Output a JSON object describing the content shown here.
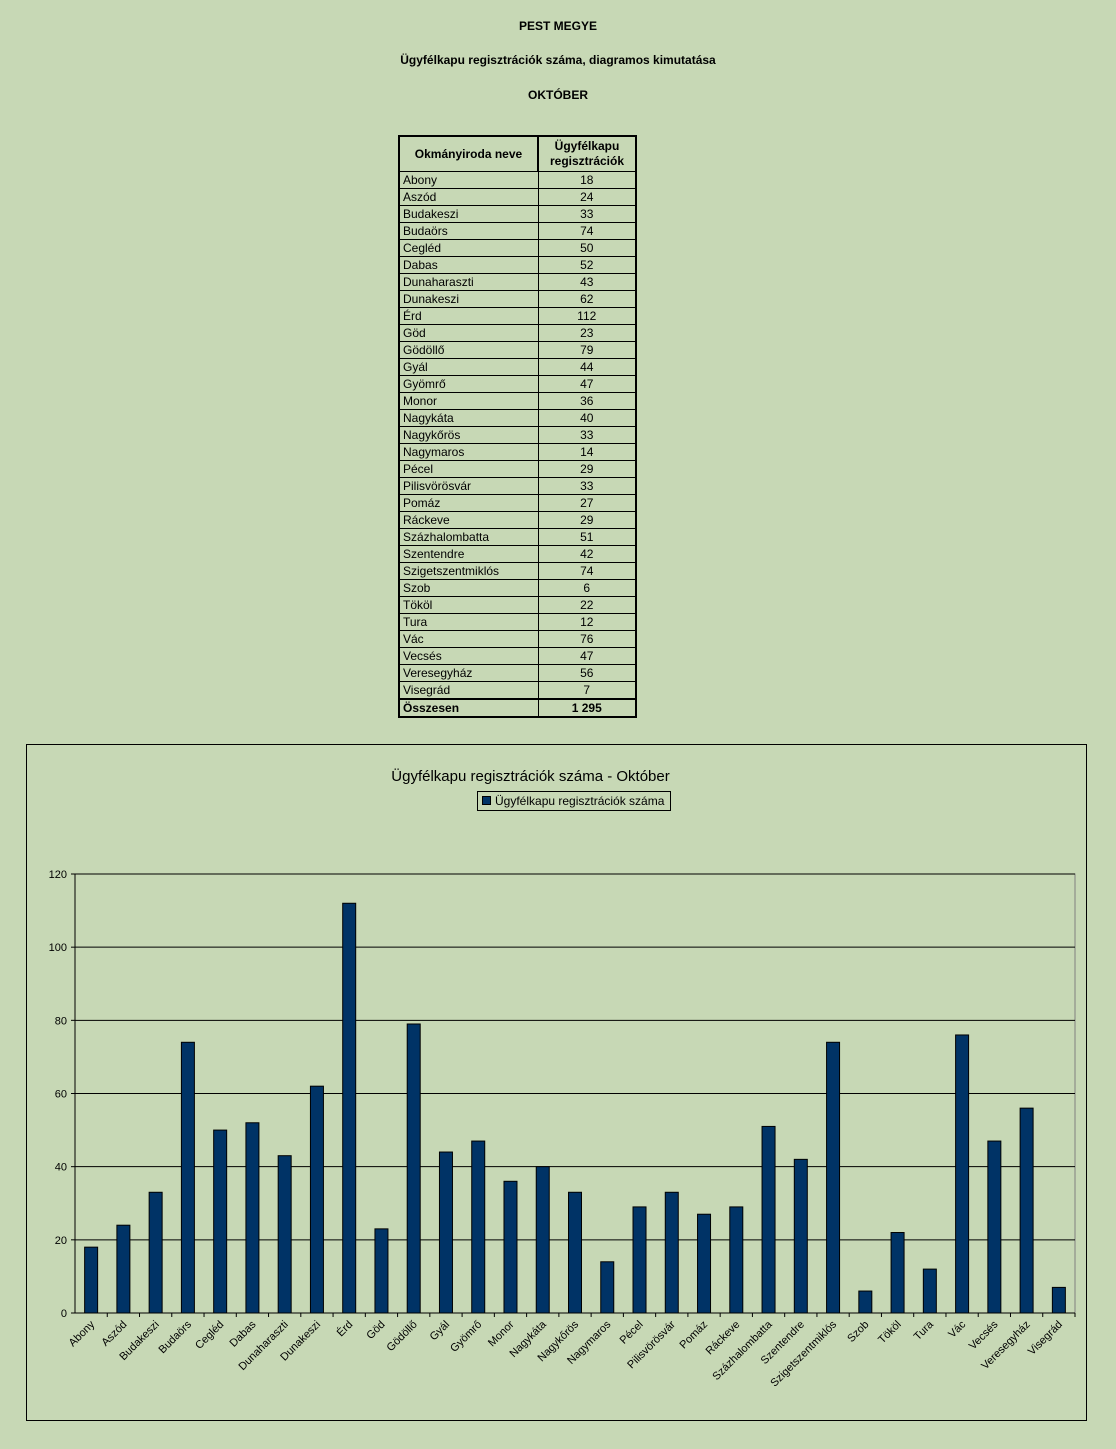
{
  "header": {
    "county": "PEST MEGYE",
    "subtitle": "Ügyfélkapu regisztrációk száma, diagramos kimutatása",
    "month": "OKTÓBER"
  },
  "table": {
    "col1_header": "Okmányiroda neve",
    "col2_header": "Ügyfélkapu regisztrációk",
    "rows": [
      {
        "name": "Abony",
        "value": "18"
      },
      {
        "name": "Aszód",
        "value": "24"
      },
      {
        "name": "Budakeszi",
        "value": "33"
      },
      {
        "name": "Budaörs",
        "value": "74"
      },
      {
        "name": "Cegléd",
        "value": "50"
      },
      {
        "name": "Dabas",
        "value": "52"
      },
      {
        "name": "Dunaharaszti",
        "value": "43"
      },
      {
        "name": "Dunakeszi",
        "value": "62"
      },
      {
        "name": "Érd",
        "value": "112"
      },
      {
        "name": "Göd",
        "value": "23"
      },
      {
        "name": "Gödöllő",
        "value": "79"
      },
      {
        "name": "Gyál",
        "value": "44"
      },
      {
        "name": "Gyömrő",
        "value": "47"
      },
      {
        "name": "Monor",
        "value": "36"
      },
      {
        "name": "Nagykáta",
        "value": "40"
      },
      {
        "name": "Nagykőrös",
        "value": "33"
      },
      {
        "name": "Nagymaros",
        "value": "14"
      },
      {
        "name": "Pécel",
        "value": "29"
      },
      {
        "name": "Pilisvörösvár",
        "value": "33"
      },
      {
        "name": "Pomáz",
        "value": "27"
      },
      {
        "name": "Ráckeve",
        "value": "29"
      },
      {
        "name": "Százhalombatta",
        "value": "51"
      },
      {
        "name": "Szentendre",
        "value": "42"
      },
      {
        "name": "Szigetszentmiklós",
        "value": "74"
      },
      {
        "name": "Szob",
        "value": "6"
      },
      {
        "name": "Tököl",
        "value": "22"
      },
      {
        "name": "Tura",
        "value": "12"
      },
      {
        "name": "Vác",
        "value": "76"
      },
      {
        "name": "Vecsés",
        "value": "47"
      },
      {
        "name": "Veresegyház",
        "value": "56"
      },
      {
        "name": "Visegrád",
        "value": "7"
      }
    ],
    "total_label": "Összesen",
    "total_value": "1 295"
  },
  "colors": {
    "background": "#c7d8b5",
    "bar": "#003366"
  },
  "chart_data": {
    "type": "bar",
    "title": "Ügyfélkapu regisztrációk száma - Október",
    "legend_position": "top",
    "grid": true,
    "xlabel": "",
    "ylabel": "",
    "ylim": [
      0,
      120
    ],
    "yticks": [
      0,
      20,
      40,
      60,
      80,
      100,
      120
    ],
    "categories": [
      "Abony",
      "Aszód",
      "Budakeszi",
      "Budaörs",
      "Cegléd",
      "Dabas",
      "Dunaharaszti",
      "Dunakeszi",
      "Érd",
      "Göd",
      "Gödöllő",
      "Gyál",
      "Gyömrő",
      "Monor",
      "Nagykáta",
      "Nagykőrös",
      "Nagymaros",
      "Pécel",
      "Pilisvörösvár",
      "Pomáz",
      "Ráckeve",
      "Százhalombatta",
      "Szentendre",
      "Szigetszentmiklós",
      "Szob",
      "Tököl",
      "Tura",
      "Vác",
      "Vecsés",
      "Veresegyház",
      "Visegrád"
    ],
    "series": [
      {
        "name": "Ügyfélkapu regisztrációk száma",
        "values": [
          18,
          24,
          33,
          74,
          50,
          52,
          43,
          62,
          112,
          23,
          79,
          44,
          47,
          36,
          40,
          33,
          14,
          29,
          33,
          27,
          29,
          51,
          42,
          74,
          6,
          22,
          12,
          76,
          47,
          56,
          7
        ]
      }
    ]
  }
}
